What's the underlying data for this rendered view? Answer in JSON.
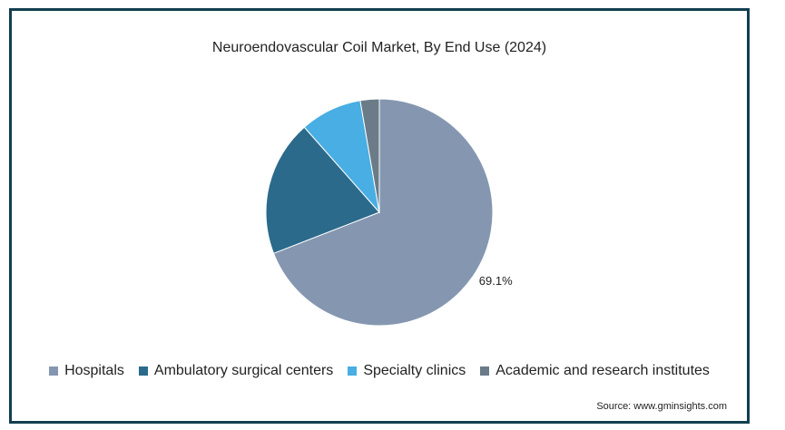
{
  "chart_data": {
    "type": "pie",
    "title": "Neuroendovascular Coil Market, By End Use (2024)",
    "categories": [
      "Hospitals",
      "Ambulatory surgical centers",
      "Specialty clinics",
      "Academic and research institutes"
    ],
    "values": [
      69.1,
      19.4,
      8.8,
      2.7
    ],
    "colors": [
      "#8597b0",
      "#2b6a8a",
      "#48aee3",
      "#6b7b88"
    ],
    "data_labels": [
      "69.1%",
      "",
      "",
      ""
    ],
    "legend_position": "bottom",
    "start_angle": "12 o'clock, clockwise"
  },
  "source": "Source: www.gminsights.com"
}
